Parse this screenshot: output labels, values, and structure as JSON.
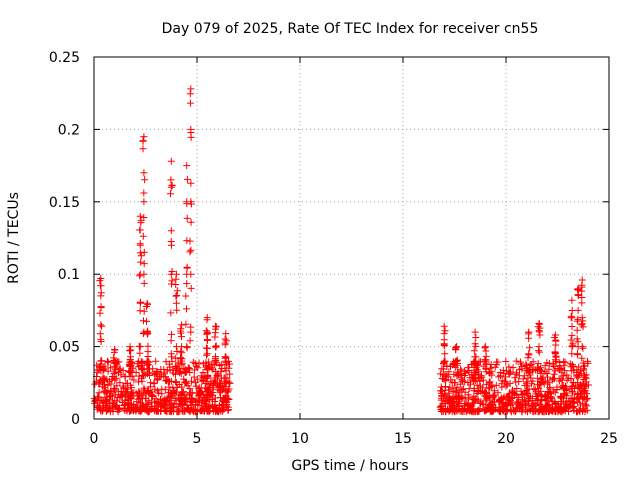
{
  "chart_data": {
    "type": "scatter",
    "title": "Day 079 of 2025, Rate Of TEC Index for receiver cn55",
    "xlabel": "GPS time / hours",
    "ylabel": "ROTI / TECUs",
    "xlim": [
      0,
      25
    ],
    "ylim": [
      0,
      0.25
    ],
    "x_ticks": [
      0,
      5,
      10,
      15,
      20,
      25
    ],
    "x_tick_labels": [
      "0",
      "5",
      "10",
      "15",
      "20",
      "25"
    ],
    "y_ticks": [
      0,
      0.05,
      0.1,
      0.15,
      0.2,
      0.25
    ],
    "y_tick_labels": [
      "0",
      "0.05",
      "0.1",
      "0.15",
      "0.2",
      "0.25"
    ],
    "grid": true,
    "marker": "+",
    "marker_color": "#ff0000",
    "series": [
      {
        "name": "ROTI",
        "bursts": [
          {
            "x": 0.33,
            "y": [
              0.04,
              0.055,
              0.065,
              0.085,
              0.097
            ]
          },
          {
            "x": 1.0,
            "y": [
              0.04,
              0.048
            ]
          },
          {
            "x": 1.75,
            "y": [
              0.04,
              0.05
            ]
          },
          {
            "x": 2.25,
            "y": [
              0.05,
              0.08,
              0.1,
              0.12,
              0.14
            ]
          },
          {
            "x": 2.42,
            "y": [
              0.06,
              0.1,
              0.15,
              0.17,
              0.195
            ]
          },
          {
            "x": 2.58,
            "y": [
              0.04,
              0.06,
              0.08
            ]
          },
          {
            "x": 3.75,
            "y": [
              0.045,
              0.1,
              0.13,
              0.16,
              0.178
            ]
          },
          {
            "x": 4.0,
            "y": [
              0.05,
              0.08,
              0.1
            ]
          },
          {
            "x": 4.25,
            "y": [
              0.04,
              0.05,
              0.065
            ]
          },
          {
            "x": 4.5,
            "y": [
              0.05,
              0.1,
              0.15,
              0.175
            ]
          },
          {
            "x": 4.7,
            "y": [
              0.06,
              0.1,
              0.15,
              0.2,
              0.228
            ]
          },
          {
            "x": 5.5,
            "y": [
              0.045,
              0.06,
              0.07
            ]
          },
          {
            "x": 5.9,
            "y": [
              0.04,
              0.05,
              0.064
            ]
          },
          {
            "x": 6.4,
            "y": [
              0.04,
              0.059
            ]
          },
          {
            "x": 17.0,
            "y": [
              0.04,
              0.052,
              0.064
            ]
          },
          {
            "x": 17.6,
            "y": [
              0.04,
              0.05
            ]
          },
          {
            "x": 18.5,
            "y": [
              0.04,
              0.052,
              0.06
            ]
          },
          {
            "x": 19.0,
            "y": [
              0.04,
              0.05
            ]
          },
          {
            "x": 21.1,
            "y": [
              0.045,
              0.06
            ]
          },
          {
            "x": 21.6,
            "y": [
              0.05,
              0.066
            ]
          },
          {
            "x": 22.4,
            "y": [
              0.045,
              0.058
            ]
          },
          {
            "x": 23.2,
            "y": [
              0.05,
              0.07,
              0.082
            ]
          },
          {
            "x": 23.5,
            "y": [
              0.05,
              0.075,
              0.09
            ]
          },
          {
            "x": 23.7,
            "y": [
              0.05,
              0.07,
              0.096
            ]
          }
        ],
        "coverage_hours": [
          [
            0,
            6.6
          ],
          [
            16.8,
            24
          ]
        ],
        "baseline_range": [
          0.005,
          0.04
        ]
      }
    ]
  }
}
